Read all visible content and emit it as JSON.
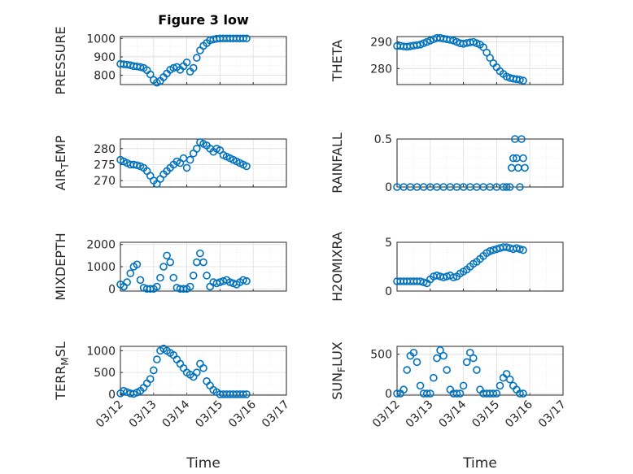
{
  "title": "Figure 3 low",
  "chart_data": [
    {
      "type": "scatter",
      "ylabel": "PRESSURE",
      "ylim": [
        750,
        1010
      ],
      "yticks": [
        800,
        900,
        1000
      ],
      "yticklabels": [
        "800",
        "900",
        "1000"
      ],
      "xlim": [
        0,
        5
      ],
      "xlabel": "",
      "x": [
        0.0,
        0.1,
        0.2,
        0.3,
        0.4,
        0.5,
        0.6,
        0.7,
        0.8,
        0.9,
        1.0,
        1.1,
        1.2,
        1.3,
        1.4,
        1.5,
        1.6,
        1.7,
        1.8,
        1.9,
        2.0,
        2.1,
        2.2,
        2.3,
        2.4,
        2.5,
        2.6,
        2.7,
        2.8,
        2.9,
        3.0,
        3.1,
        3.2,
        3.3,
        3.4,
        3.5,
        3.6,
        3.7,
        3.8
      ],
      "y": [
        862,
        860,
        858,
        855,
        850,
        848,
        845,
        840,
        828,
        805,
        775,
        760,
        770,
        790,
        810,
        830,
        840,
        845,
        830,
        850,
        870,
        820,
        840,
        895,
        935,
        960,
        975,
        990,
        995,
        998,
        1000,
        1000,
        1000,
        1000,
        1000,
        1000,
        1000,
        1000,
        1000
      ]
    },
    {
      "type": "scatter",
      "ylabel": "THETA",
      "ylim": [
        274,
        292
      ],
      "yticks": [
        280,
        290
      ],
      "yticklabels": [
        "280",
        "290"
      ],
      "xlim": [
        0,
        5
      ],
      "xlabel": "",
      "x": [
        0.0,
        0.1,
        0.2,
        0.3,
        0.4,
        0.5,
        0.6,
        0.7,
        0.8,
        0.9,
        1.0,
        1.1,
        1.2,
        1.3,
        1.4,
        1.5,
        1.6,
        1.7,
        1.8,
        1.9,
        2.0,
        2.1,
        2.2,
        2.3,
        2.4,
        2.5,
        2.6,
        2.7,
        2.8,
        2.9,
        3.0,
        3.1,
        3.2,
        3.3,
        3.4,
        3.5,
        3.6,
        3.7,
        3.8
      ],
      "y": [
        288.5,
        288.5,
        288.3,
        288.2,
        288.4,
        288.6,
        288.8,
        289,
        289.5,
        290,
        290.5,
        291,
        291.5,
        291.5,
        291.2,
        291,
        290.8,
        290.5,
        290,
        289.5,
        289.3,
        289.6,
        289.8,
        290,
        289.5,
        289,
        288,
        286,
        284,
        282,
        280.5,
        279,
        278,
        277,
        276.5,
        276.2,
        276,
        275.8,
        275.5
      ]
    },
    {
      "type": "scatter",
      "ylabel": "AIR_TEMP",
      "ylim": [
        268,
        283
      ],
      "yticks": [
        270,
        275,
        280
      ],
      "yticklabels": [
        "270",
        "275",
        "280"
      ],
      "xlim": [
        0,
        5
      ],
      "xlabel": "",
      "x": [
        0.0,
        0.1,
        0.2,
        0.3,
        0.4,
        0.5,
        0.6,
        0.7,
        0.8,
        0.9,
        1.0,
        1.1,
        1.2,
        1.3,
        1.4,
        1.5,
        1.6,
        1.7,
        1.8,
        1.9,
        2.0,
        2.1,
        2.2,
        2.3,
        2.4,
        2.5,
        2.6,
        2.7,
        2.8,
        2.9,
        3.0,
        3.1,
        3.2,
        3.3,
        3.4,
        3.5,
        3.6,
        3.7,
        3.8
      ],
      "y": [
        276.5,
        276,
        275.5,
        275,
        275,
        274.8,
        274.5,
        274,
        273,
        271.5,
        270,
        269,
        270.5,
        272,
        273,
        274,
        275,
        276,
        275.5,
        277,
        274,
        276.5,
        278.5,
        280,
        282,
        281.5,
        281,
        280,
        279,
        280,
        279.5,
        278,
        277.5,
        277,
        276.5,
        276,
        275.5,
        275,
        274.5
      ]
    },
    {
      "type": "scatter",
      "ylabel": "RAINFALL",
      "ylim": [
        0,
        0.5
      ],
      "yticks": [
        0,
        0.5
      ],
      "yticklabels": [
        "0",
        "0.5"
      ],
      "xlim": [
        0,
        5
      ],
      "xlabel": "",
      "x": [
        0.0,
        0.2,
        0.4,
        0.6,
        0.8,
        1.0,
        1.2,
        1.4,
        1.6,
        1.8,
        2.0,
        2.2,
        2.4,
        2.6,
        2.8,
        3.0,
        3.2,
        3.3,
        3.4,
        3.45,
        3.5,
        3.55,
        3.6,
        3.65,
        3.7,
        3.75,
        3.8,
        3.85
      ],
      "y": [
        0,
        0,
        0,
        0,
        0,
        0,
        0,
        0,
        0,
        0,
        0,
        0,
        0,
        0,
        0,
        0,
        0,
        0,
        0,
        0.2,
        0.3,
        0.5,
        0.3,
        0.2,
        0,
        0.5,
        0.3,
        0.2
      ]
    },
    {
      "type": "scatter",
      "ylabel": "MIXDEPTH",
      "ylim": [
        -100,
        2100
      ],
      "yticks": [
        0,
        1000,
        2000
      ],
      "yticklabels": [
        "0",
        "1000",
        "2000"
      ],
      "xlim": [
        0,
        5
      ],
      "xlabel": "",
      "x": [
        0.0,
        0.1,
        0.2,
        0.3,
        0.4,
        0.5,
        0.6,
        0.7,
        0.8,
        0.9,
        1.0,
        1.1,
        1.2,
        1.3,
        1.4,
        1.5,
        1.6,
        1.7,
        1.8,
        1.9,
        2.0,
        2.1,
        2.2,
        2.3,
        2.4,
        2.5,
        2.6,
        2.7,
        2.8,
        2.9,
        3.0,
        3.1,
        3.2,
        3.3,
        3.4,
        3.5,
        3.6,
        3.7,
        3.8
      ],
      "y": [
        200,
        100,
        300,
        700,
        1000,
        1100,
        400,
        50,
        0,
        0,
        0,
        100,
        500,
        1000,
        1500,
        1200,
        500,
        50,
        0,
        0,
        0,
        100,
        600,
        1200,
        1600,
        1200,
        600,
        100,
        300,
        250,
        300,
        350,
        400,
        300,
        250,
        200,
        300,
        400,
        350
      ]
    },
    {
      "type": "scatter",
      "ylabel": "H2OMIXRA",
      "ylim": [
        0,
        5
      ],
      "yticks": [
        0,
        5
      ],
      "yticklabels": [
        "0",
        "5"
      ],
      "xlim": [
        0,
        5
      ],
      "xlabel": "",
      "x": [
        0.0,
        0.1,
        0.2,
        0.3,
        0.4,
        0.5,
        0.6,
        0.7,
        0.8,
        0.9,
        1.0,
        1.1,
        1.2,
        1.3,
        1.4,
        1.5,
        1.6,
        1.7,
        1.8,
        1.9,
        2.0,
        2.1,
        2.2,
        2.3,
        2.4,
        2.5,
        2.6,
        2.7,
        2.8,
        2.9,
        3.0,
        3.1,
        3.2,
        3.3,
        3.4,
        3.5,
        3.6,
        3.7,
        3.8
      ],
      "y": [
        1.0,
        1.0,
        1.0,
        1.0,
        1.0,
        1.0,
        1.0,
        1.0,
        0.9,
        0.8,
        1.2,
        1.5,
        1.6,
        1.5,
        1.4,
        1.5,
        1.6,
        1.4,
        1.5,
        1.8,
        2.0,
        2.2,
        2.5,
        2.8,
        3.0,
        3.3,
        3.6,
        3.9,
        4.1,
        4.2,
        4.3,
        4.4,
        4.5,
        4.5,
        4.4,
        4.3,
        4.4,
        4.3,
        4.2
      ]
    },
    {
      "type": "scatter",
      "ylabel": "TERR_MSL",
      "ylim": [
        -20,
        1100
      ],
      "yticks": [
        0,
        500,
        1000
      ],
      "yticklabels": [
        "0",
        "500",
        "1000"
      ],
      "xlim": [
        0,
        5
      ],
      "xlabel": "Time",
      "xticklabels": [
        "03/12",
        "03/13",
        "03/14",
        "03/15",
        "03/16",
        "03/17"
      ],
      "x": [
        0.0,
        0.1,
        0.2,
        0.3,
        0.4,
        0.5,
        0.6,
        0.7,
        0.8,
        0.9,
        1.0,
        1.1,
        1.2,
        1.3,
        1.4,
        1.5,
        1.6,
        1.7,
        1.8,
        1.9,
        2.0,
        2.1,
        2.2,
        2.3,
        2.4,
        2.5,
        2.6,
        2.7,
        2.8,
        2.9,
        3.0,
        3.1,
        3.2,
        3.3,
        3.4,
        3.5,
        3.6,
        3.7,
        3.8
      ],
      "y": [
        20,
        80,
        50,
        20,
        10,
        40,
        80,
        150,
        250,
        350,
        550,
        800,
        1000,
        1050,
        1000,
        950,
        900,
        800,
        700,
        600,
        500,
        450,
        400,
        500,
        700,
        600,
        300,
        200,
        100,
        50,
        0,
        0,
        0,
        0,
        0,
        0,
        0,
        0,
        0
      ]
    },
    {
      "type": "scatter",
      "ylabel": "SUN_FLUX",
      "ylim": [
        -20,
        600
      ],
      "yticks": [
        0,
        500
      ],
      "yticklabels": [
        "0",
        "500"
      ],
      "xlim": [
        0,
        5
      ],
      "xlabel": "Time",
      "xticklabels": [
        "03/12",
        "03/13",
        "03/14",
        "03/15",
        "03/16",
        "03/17"
      ],
      "x": [
        0.0,
        0.1,
        0.2,
        0.3,
        0.4,
        0.5,
        0.6,
        0.7,
        0.8,
        0.9,
        1.0,
        1.1,
        1.2,
        1.3,
        1.4,
        1.5,
        1.6,
        1.7,
        1.8,
        1.9,
        2.0,
        2.1,
        2.2,
        2.3,
        2.4,
        2.5,
        2.6,
        2.7,
        2.8,
        2.9,
        3.0,
        3.1,
        3.2,
        3.3,
        3.4,
        3.5,
        3.6,
        3.7,
        3.8
      ],
      "y": [
        0,
        0,
        50,
        300,
        480,
        520,
        400,
        100,
        0,
        0,
        0,
        200,
        450,
        550,
        480,
        300,
        50,
        0,
        0,
        0,
        100,
        400,
        520,
        450,
        300,
        50,
        0,
        0,
        0,
        0,
        0,
        100,
        200,
        250,
        180,
        100,
        50,
        0,
        0
      ]
    }
  ]
}
